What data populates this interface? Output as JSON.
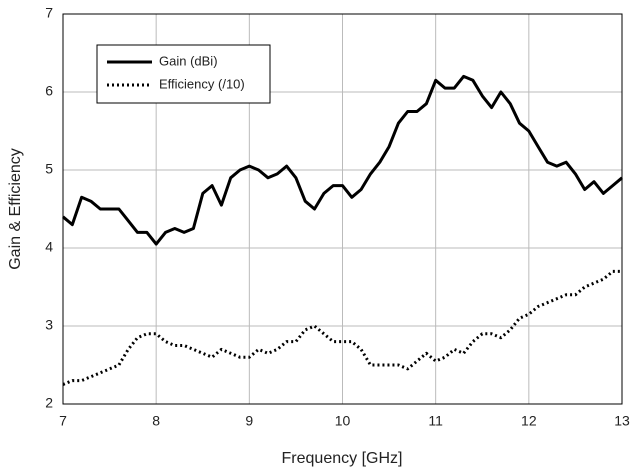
{
  "chart_data": {
    "type": "line",
    "xlabel": "Frequency [GHz]",
    "ylabel": "Gain & Efficiency",
    "x": [
      7.0,
      7.1,
      7.2,
      7.3,
      7.4,
      7.5,
      7.6,
      7.7,
      7.8,
      7.9,
      8.0,
      8.1,
      8.2,
      8.3,
      8.4,
      8.5,
      8.6,
      8.7,
      8.8,
      8.9,
      9.0,
      9.1,
      9.2,
      9.3,
      9.4,
      9.5,
      9.6,
      9.7,
      9.8,
      9.9,
      10.0,
      10.1,
      10.2,
      10.3,
      10.4,
      10.5,
      10.6,
      10.7,
      10.8,
      10.9,
      11.0,
      11.1,
      11.2,
      11.3,
      11.4,
      11.5,
      11.6,
      11.7,
      11.8,
      11.9,
      12.0,
      12.1,
      12.2,
      12.3,
      12.4,
      12.5,
      12.6,
      12.7,
      12.8,
      12.9,
      13.0
    ],
    "series": [
      {
        "name": "Gain (dBi)",
        "color": "#000000",
        "style": "solid",
        "values": [
          4.4,
          4.3,
          4.65,
          4.6,
          4.5,
          4.5,
          4.5,
          4.35,
          4.2,
          4.2,
          4.05,
          4.2,
          4.25,
          4.2,
          4.25,
          4.7,
          4.8,
          4.55,
          4.9,
          5.0,
          5.05,
          5.0,
          4.9,
          4.95,
          5.05,
          4.9,
          4.6,
          4.5,
          4.7,
          4.8,
          4.8,
          4.65,
          4.75,
          4.95,
          5.1,
          5.3,
          5.6,
          5.75,
          5.75,
          5.85,
          6.15,
          6.05,
          6.05,
          6.2,
          6.15,
          5.95,
          5.8,
          6.0,
          5.85,
          5.6,
          5.5,
          5.3,
          5.1,
          5.05,
          5.1,
          4.95,
          4.75,
          4.85,
          4.7,
          4.8,
          4.9
        ]
      },
      {
        "name": "Efficiency (/10)",
        "color": "#000000",
        "style": "dotted",
        "values": [
          2.25,
          2.3,
          2.3,
          2.35,
          2.4,
          2.45,
          2.5,
          2.7,
          2.85,
          2.9,
          2.9,
          2.8,
          2.75,
          2.75,
          2.7,
          2.65,
          2.6,
          2.7,
          2.65,
          2.6,
          2.6,
          2.7,
          2.65,
          2.7,
          2.8,
          2.8,
          2.95,
          3.0,
          2.9,
          2.8,
          2.8,
          2.8,
          2.7,
          2.5,
          2.5,
          2.5,
          2.5,
          2.45,
          2.55,
          2.65,
          2.55,
          2.6,
          2.7,
          2.65,
          2.8,
          2.9,
          2.9,
          2.85,
          2.95,
          3.1,
          3.15,
          3.25,
          3.3,
          3.35,
          3.4,
          3.4,
          3.5,
          3.55,
          3.6,
          3.7,
          3.7
        ]
      }
    ],
    "xlim": [
      7,
      13
    ],
    "xticks": [
      7,
      8,
      9,
      10,
      11,
      12,
      13
    ],
    "ylim": [
      2,
      7
    ],
    "yticks": [
      2,
      3,
      4,
      5,
      6,
      7
    ],
    "grid": true,
    "legend": "upper left"
  }
}
